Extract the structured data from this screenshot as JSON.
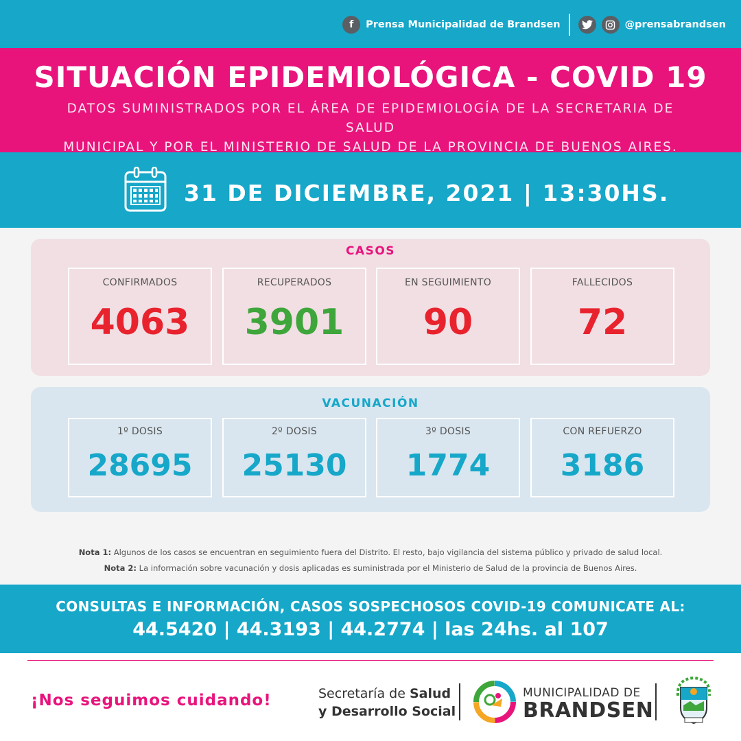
{
  "social": {
    "facebook_icon": "f",
    "facebook_label": "Prensa Municipalidad de Brandsen",
    "twitter_icon": "twitter-icon",
    "instagram_icon": "instagram-icon",
    "handle": "@prensabrandsen"
  },
  "header": {
    "title": "SITUACIÓN EPIDEMIOLÓGICA - COVID 19",
    "subtitle_line1": "DATOS SUMINISTRADOS POR EL ÁREA DE EPIDEMIOLOGÍA DE LA SECRETARIA DE SALUD",
    "subtitle_line2": "MUNICIPAL Y POR EL MINISTERIO DE SALUD DE LA PROVINCIA DE BUENOS AIRES."
  },
  "date": {
    "text": "31 DE DICIEMBRE, 2021 | 13:30HS."
  },
  "casos": {
    "title": "CASOS",
    "items": [
      {
        "label": "CONFIRMADOS",
        "value": "4063",
        "color": "#e8232d"
      },
      {
        "label": "RECUPERADOS",
        "value": "3901",
        "color": "#3ea63a"
      },
      {
        "label": "EN SEGUIMIENTO",
        "value": "90",
        "color": "#e8232d"
      },
      {
        "label": "FALLECIDOS",
        "value": "72",
        "color": "#e8232d"
      }
    ]
  },
  "vacunacion": {
    "title": "VACUNACIÓN",
    "items": [
      {
        "label": "1º DOSIS",
        "value": "28695"
      },
      {
        "label": "2º DOSIS",
        "value": "25130"
      },
      {
        "label": "3º DOSIS",
        "value": "1774"
      },
      {
        "label": "CON REFUERZO",
        "value": "3186"
      }
    ]
  },
  "notes": {
    "n1_label": "Nota 1:",
    "n1_text": " Algunos de los casos se encuentran en seguimiento fuera del Distrito. El resto, bajo vigilancia del sistema público y privado de salud local.",
    "n2_label": "Nota 2:",
    "n2_text": " La información sobre vacunación y dosis aplicadas es suministrada por el Ministerio de Salud de la provincia de Buenos Aires."
  },
  "contact": {
    "line1": "CONSULTAS E INFORMACIÓN, CASOS SOSPECHOSOS COVID-19 COMUNICATE AL:",
    "line2": "44.5420 | 44.3193 | 44.2774 | las 24hs. al 107"
  },
  "footer": {
    "slogan": "¡Nos seguimos cuidando!",
    "secretaria_pre": "Secretaría de ",
    "secretaria_bold1": "Salud",
    "secretaria_line2": "y Desarrollo Social",
    "muni_line1": "MUNICIPALIDAD DE",
    "muni_line2": "BRANDSEN"
  },
  "colors": {
    "cyan": "#16a7c9",
    "magenta": "#e8147c",
    "red": "#e8232d",
    "green": "#3ea63a"
  }
}
